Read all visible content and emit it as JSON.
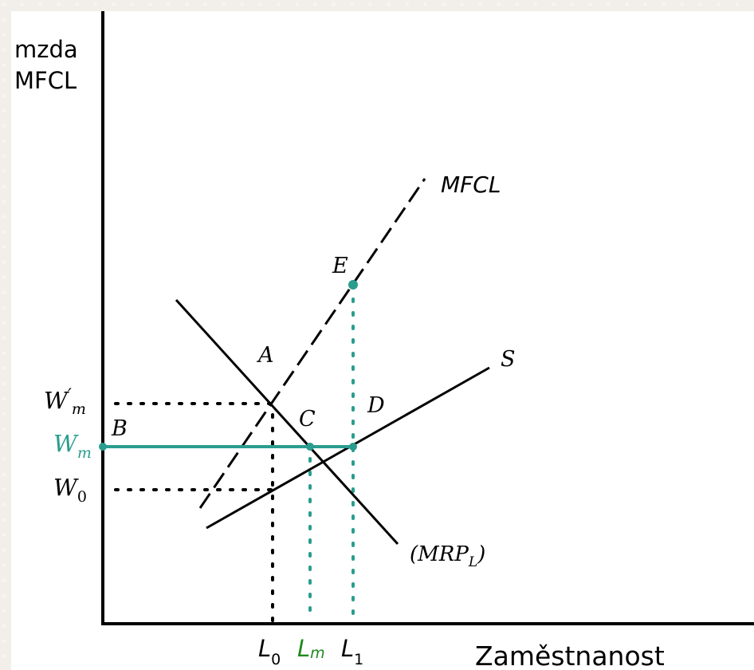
{
  "y_axis_label_line1": "mzda",
  "y_axis_label_line2": "MFCL",
  "x_axis_label": "Zaměstnanost",
  "curves": {
    "mfcl": "MFCL",
    "supply": "S",
    "mrp_open": "(",
    "mrp_main": "MRP",
    "mrp_sub": "L",
    "mrp_close": ")"
  },
  "points": {
    "E": "E",
    "A": "A",
    "C": "C",
    "D": "D",
    "B": "B"
  },
  "wage_labels": {
    "wm_prime_main": "W",
    "wm_prime_sup": "′",
    "wm_prime_sub": "m",
    "wm_main": "W",
    "wm_sub": "m",
    "w0_main": "W",
    "w0_sub": "0"
  },
  "employment_labels": {
    "l0_main": "L",
    "l0_sub": "0",
    "lm_main": "L",
    "lm_sub": "m",
    "l1_main": "L",
    "l1_sub": "1"
  },
  "colors": {
    "teal": "#2a9d8f",
    "green": "#1f8a1f",
    "black": "#000000"
  }
}
